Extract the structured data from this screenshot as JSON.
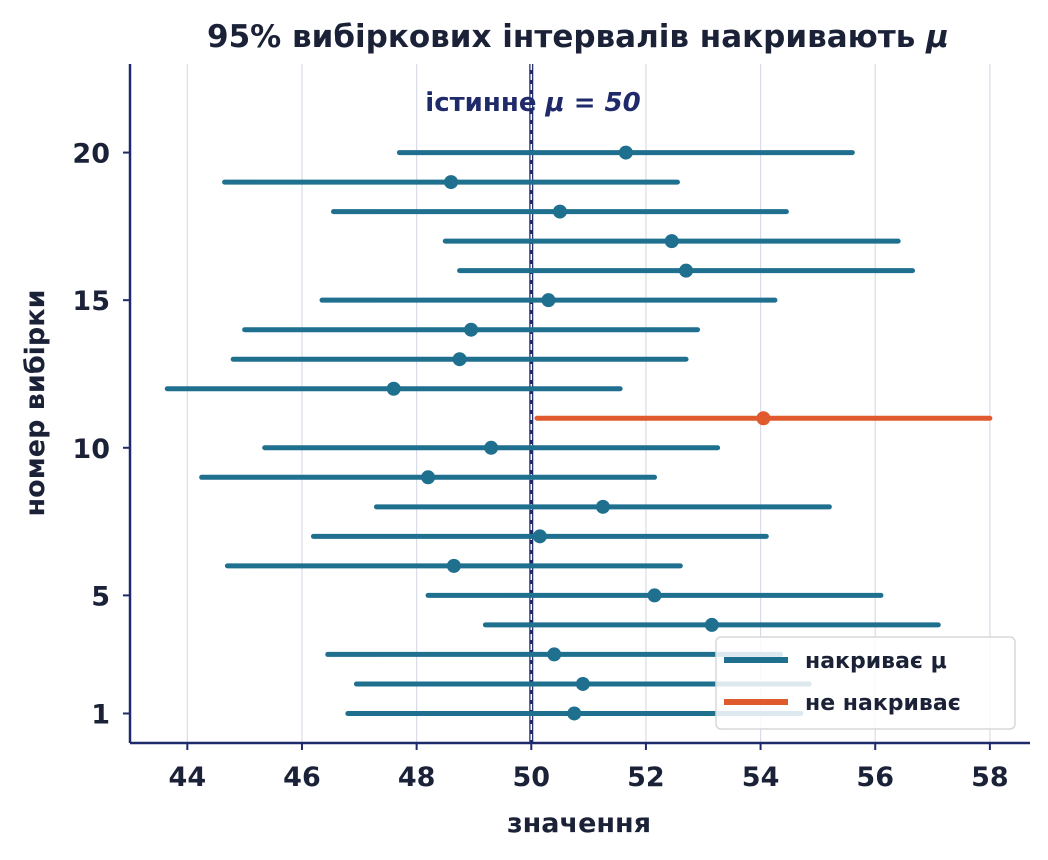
{
  "chart_data": {
    "type": "scatter",
    "title": "95% вибіркових інтервалів накривають ",
    "title_symbol": "μ",
    "xlabel": "значення",
    "ylabel": "номер вибірки",
    "xlim": [
      43,
      58.7
    ],
    "ylim": [
      0,
      23
    ],
    "xticks": [
      44,
      46,
      48,
      50,
      52,
      54,
      56,
      58
    ],
    "yticks": [
      1,
      5,
      10,
      15,
      20
    ],
    "grid": "vertical",
    "true_mu": 50,
    "true_mu_label": "істинне ",
    "true_mu_label_math": "μ = 50",
    "legend_position": "bottom-right",
    "series": [
      {
        "name": "накриває μ",
        "color": "#1f6f8f"
      },
      {
        "name": "не накриває",
        "color": "#e05a2e"
      }
    ],
    "intervals": [
      {
        "sample": 1,
        "mean": 50.75,
        "low": 46.8,
        "high": 54.7,
        "covers": true
      },
      {
        "sample": 2,
        "mean": 50.9,
        "low": 46.95,
        "high": 54.85,
        "covers": true
      },
      {
        "sample": 3,
        "mean": 50.4,
        "low": 46.45,
        "high": 54.35,
        "covers": true
      },
      {
        "sample": 4,
        "mean": 53.15,
        "low": 49.2,
        "high": 57.1,
        "covers": true
      },
      {
        "sample": 5,
        "mean": 52.15,
        "low": 48.2,
        "high": 56.1,
        "covers": true
      },
      {
        "sample": 6,
        "mean": 48.65,
        "low": 44.7,
        "high": 52.6,
        "covers": true
      },
      {
        "sample": 7,
        "mean": 50.15,
        "low": 46.2,
        "high": 54.1,
        "covers": true
      },
      {
        "sample": 8,
        "mean": 51.25,
        "low": 47.3,
        "high": 55.2,
        "covers": true
      },
      {
        "sample": 9,
        "mean": 48.2,
        "low": 44.25,
        "high": 52.15,
        "covers": true
      },
      {
        "sample": 10,
        "mean": 49.3,
        "low": 45.35,
        "high": 53.25,
        "covers": true
      },
      {
        "sample": 11,
        "mean": 54.05,
        "low": 50.1,
        "high": 58.0,
        "covers": false
      },
      {
        "sample": 12,
        "mean": 47.6,
        "low": 43.65,
        "high": 51.55,
        "covers": true
      },
      {
        "sample": 13,
        "mean": 48.75,
        "low": 44.8,
        "high": 52.7,
        "covers": true
      },
      {
        "sample": 14,
        "mean": 48.95,
        "low": 45.0,
        "high": 52.9,
        "covers": true
      },
      {
        "sample": 15,
        "mean": 50.3,
        "low": 46.35,
        "high": 54.25,
        "covers": true
      },
      {
        "sample": 16,
        "mean": 52.7,
        "low": 48.75,
        "high": 56.65,
        "covers": true
      },
      {
        "sample": 17,
        "mean": 52.45,
        "low": 48.5,
        "high": 56.4,
        "covers": true
      },
      {
        "sample": 18,
        "mean": 50.5,
        "low": 46.55,
        "high": 54.45,
        "covers": true
      },
      {
        "sample": 19,
        "mean": 48.6,
        "low": 44.65,
        "high": 52.55,
        "covers": true
      },
      {
        "sample": 20,
        "mean": 51.65,
        "low": 47.7,
        "high": 55.6,
        "covers": true
      }
    ]
  },
  "colors": {
    "cover": "#1f6f8f",
    "miss": "#e05a2e",
    "axis": "#1f2a6b",
    "grid": "#d9dce8",
    "text": "#1b2238"
  }
}
